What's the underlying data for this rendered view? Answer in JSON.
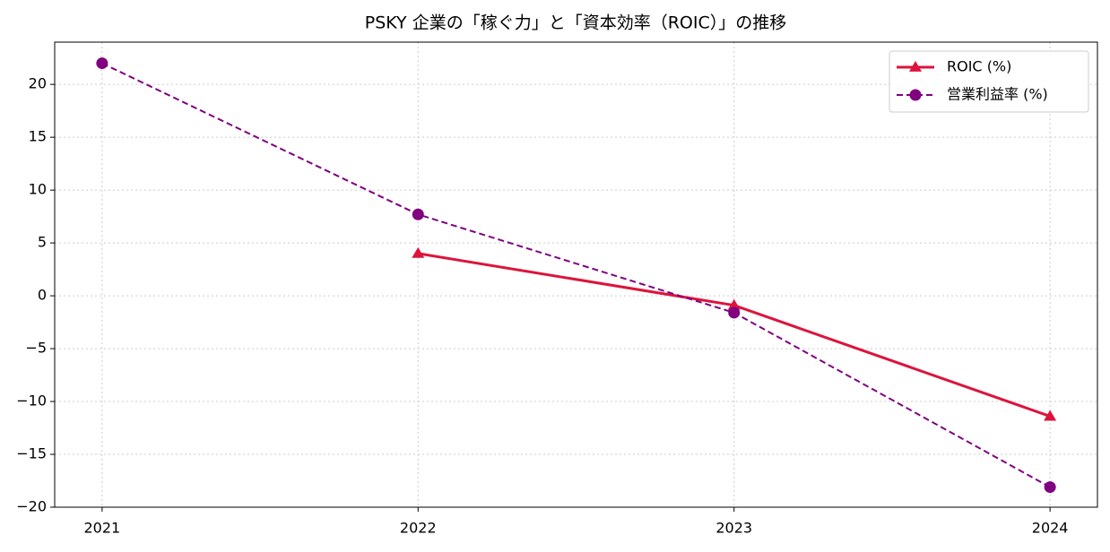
{
  "chart_data": {
    "type": "line",
    "title": "PSKY 企業の「稼ぐ力」と「資本効率（ROIC）」の推移",
    "x": [
      2021,
      2022,
      2023,
      2024
    ],
    "series": [
      {
        "name": "ROIC (%)",
        "color": "#dc143c",
        "marker": "triangle",
        "dash": "solid",
        "values": [
          null,
          4.0,
          -0.9,
          -11.4
        ]
      },
      {
        "name": "営業利益率 (%)",
        "color": "#800080",
        "marker": "circle",
        "dash": "dashed",
        "values": [
          22.0,
          7.7,
          -1.6,
          -18.1
        ]
      }
    ],
    "xlim": [
      2020.85,
      2024.15
    ],
    "xticks": [
      2021,
      2022,
      2023,
      2024
    ],
    "ylim": [
      -20,
      24
    ],
    "yticks": [
      {
        "value": -20,
        "label": "−20"
      },
      {
        "value": -15,
        "label": "−15"
      },
      {
        "value": -10,
        "label": "−10"
      },
      {
        "value": -5,
        "label": "−5"
      },
      0,
      5,
      10,
      15,
      20
    ],
    "grid": true,
    "legend": "upper right"
  }
}
